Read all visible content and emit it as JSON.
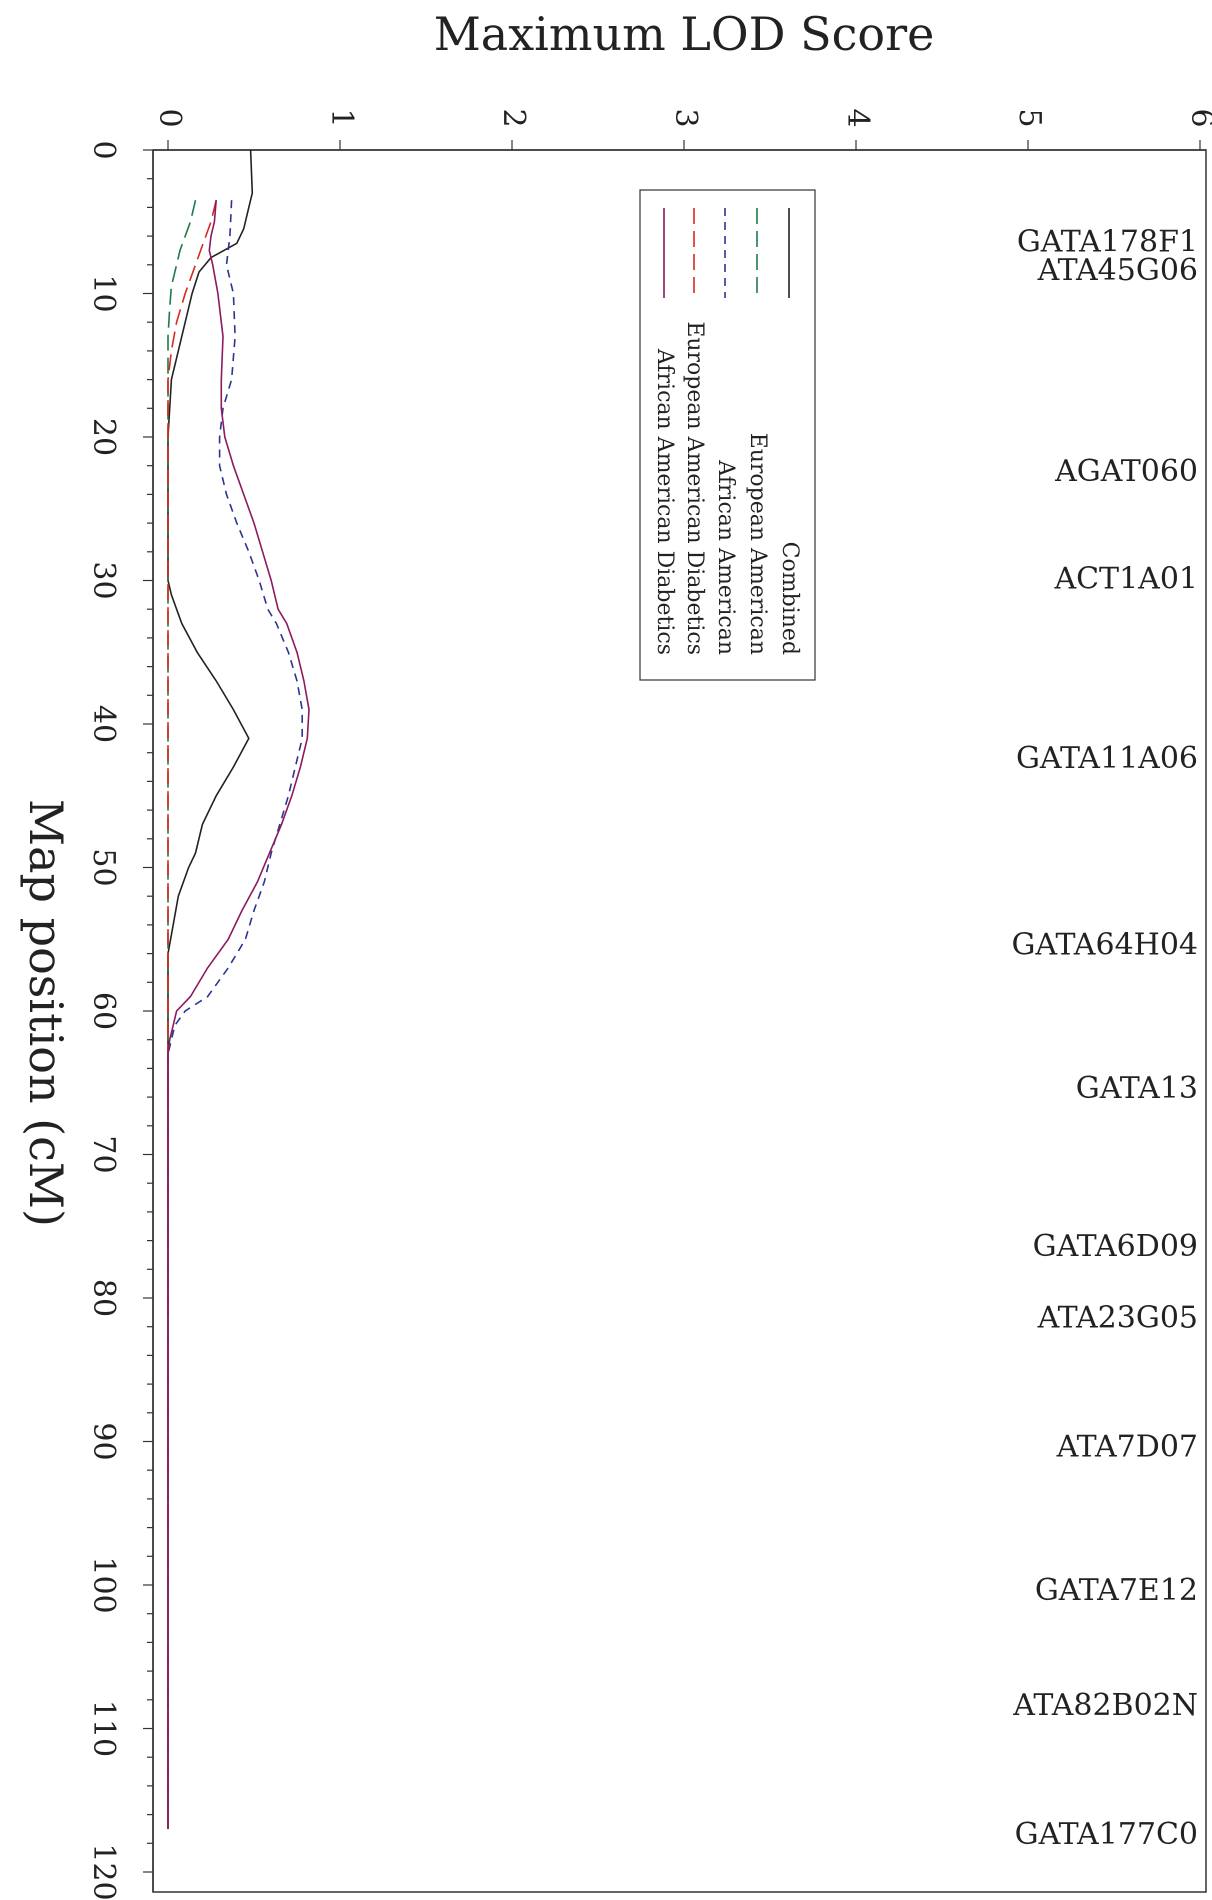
{
  "chart_data": {
    "type": "line",
    "orientation": "rotated 90 degrees clockwise",
    "title": "",
    "xlabel": "Map position (cM)",
    "ylabel": "Maximum LOD Score",
    "xlim": [
      0,
      120
    ],
    "ylim": [
      0,
      6
    ],
    "x_ticks": [
      "0",
      "10",
      "20",
      "30",
      "40",
      "50",
      "60",
      "70",
      "80",
      "90",
      "100",
      "110",
      "120"
    ],
    "y_ticks": [
      "0",
      "1",
      "2",
      "3",
      "4",
      "5",
      "6"
    ],
    "legend_position": "top-right",
    "series": [
      {
        "name": "Combined",
        "color": "#222222",
        "dash": "solid",
        "points": [
          [
            0,
            0.48
          ],
          [
            3,
            0.49
          ],
          [
            4,
            0.47
          ],
          [
            5.5,
            0.44
          ],
          [
            6.5,
            0.4
          ],
          [
            7.5,
            0.25
          ],
          [
            8.5,
            0.18
          ],
          [
            10,
            0.14
          ],
          [
            12,
            0.1
          ],
          [
            14,
            0.06
          ],
          [
            16,
            0.02
          ],
          [
            20,
            0.0
          ],
          [
            30,
            0.0
          ],
          [
            31,
            0.02
          ],
          [
            32,
            0.05
          ],
          [
            33,
            0.08
          ],
          [
            35,
            0.17
          ],
          [
            37,
            0.28
          ],
          [
            39,
            0.38
          ],
          [
            41,
            0.47
          ],
          [
            43,
            0.38
          ],
          [
            45,
            0.28
          ],
          [
            47,
            0.2
          ],
          [
            49,
            0.16
          ],
          [
            50,
            0.12
          ],
          [
            52,
            0.06
          ],
          [
            54,
            0.03
          ],
          [
            56,
            0.0
          ],
          [
            60,
            0.0
          ],
          [
            117,
            0.0
          ]
        ]
      },
      {
        "name": "European American",
        "color": "#1f7a4a",
        "dash": "longdash",
        "points": [
          [
            3.5,
            0.16
          ],
          [
            5,
            0.13
          ],
          [
            6,
            0.1
          ],
          [
            7,
            0.07
          ],
          [
            8,
            0.05
          ],
          [
            9.5,
            0.02
          ],
          [
            11,
            0.01
          ],
          [
            13,
            0.0
          ],
          [
            117,
            0.0
          ]
        ]
      },
      {
        "name": "African American",
        "color": "#2b3590",
        "dash": "dash",
        "points": [
          [
            3.5,
            0.37
          ],
          [
            6,
            0.36
          ],
          [
            8,
            0.34
          ],
          [
            10,
            0.38
          ],
          [
            13,
            0.39
          ],
          [
            16,
            0.37
          ],
          [
            18,
            0.32
          ],
          [
            20,
            0.3
          ],
          [
            22,
            0.3
          ],
          [
            24,
            0.34
          ],
          [
            26,
            0.4
          ],
          [
            28,
            0.47
          ],
          [
            30,
            0.53
          ],
          [
            32,
            0.58
          ],
          [
            33,
            0.63
          ],
          [
            35,
            0.7
          ],
          [
            37,
            0.75
          ],
          [
            39,
            0.78
          ],
          [
            41,
            0.78
          ],
          [
            43,
            0.74
          ],
          [
            45,
            0.7
          ],
          [
            47,
            0.65
          ],
          [
            49,
            0.6
          ],
          [
            51,
            0.56
          ],
          [
            53,
            0.5
          ],
          [
            55,
            0.45
          ],
          [
            57,
            0.35
          ],
          [
            59,
            0.23
          ],
          [
            60,
            0.1
          ],
          [
            61,
            0.04
          ],
          [
            62,
            0.02
          ],
          [
            63,
            0.0
          ],
          [
            117,
            0.0
          ]
        ]
      },
      {
        "name": "European American Diabetics",
        "color": "#d62a1e",
        "dash": "longdash",
        "points": [
          [
            3.5,
            0.28
          ],
          [
            5,
            0.25
          ],
          [
            6,
            0.22
          ],
          [
            8,
            0.16
          ],
          [
            10,
            0.1
          ],
          [
            12,
            0.05
          ],
          [
            14,
            0.02
          ],
          [
            16,
            0.0
          ],
          [
            117,
            0.0
          ]
        ]
      },
      {
        "name": "African American Diabetics",
        "color": "#8b1a5e",
        "dash": "solid",
        "points": [
          [
            3.5,
            0.28
          ],
          [
            5,
            0.27
          ],
          [
            6,
            0.25
          ],
          [
            7,
            0.24
          ],
          [
            8,
            0.26
          ],
          [
            10,
            0.29
          ],
          [
            13,
            0.32
          ],
          [
            16,
            0.31
          ],
          [
            18,
            0.31
          ],
          [
            20,
            0.33
          ],
          [
            22,
            0.38
          ],
          [
            24,
            0.44
          ],
          [
            26,
            0.5
          ],
          [
            28,
            0.55
          ],
          [
            30,
            0.6
          ],
          [
            32,
            0.64
          ],
          [
            33,
            0.69
          ],
          [
            35,
            0.75
          ],
          [
            37,
            0.79
          ],
          [
            39,
            0.82
          ],
          [
            41,
            0.81
          ],
          [
            43,
            0.77
          ],
          [
            45,
            0.72
          ],
          [
            47,
            0.66
          ],
          [
            49,
            0.59
          ],
          [
            51,
            0.52
          ],
          [
            53,
            0.43
          ],
          [
            55,
            0.35
          ],
          [
            57,
            0.23
          ],
          [
            59,
            0.13
          ],
          [
            60,
            0.05
          ],
          [
            61,
            0.03
          ],
          [
            62,
            0.01
          ],
          [
            63,
            0.0
          ],
          [
            117,
            0.0
          ]
        ]
      }
    ],
    "markers": [
      {
        "label": "GATA178F1",
        "pos": 6.5
      },
      {
        "label": "ATA45G06",
        "pos": 8.5
      },
      {
        "label": "AGAT060",
        "pos": 22.5
      },
      {
        "label": "ACT1A01",
        "pos": 30
      },
      {
        "label": "GATA11A06",
        "pos": 42.5
      },
      {
        "label": "GATA64H04",
        "pos": 55.5
      },
      {
        "label": "GATA13",
        "pos": 65.5
      },
      {
        "label": "GATA6D09",
        "pos": 76.5
      },
      {
        "label": "ATA23G05",
        "pos": 81.5
      },
      {
        "label": "ATA7D07",
        "pos": 90.5
      },
      {
        "label": "GATA7E12",
        "pos": 100.5
      },
      {
        "label": "ATA82B02N",
        "pos": 108.5
      },
      {
        "label": "GATA177C0",
        "pos": 117.5
      }
    ]
  }
}
